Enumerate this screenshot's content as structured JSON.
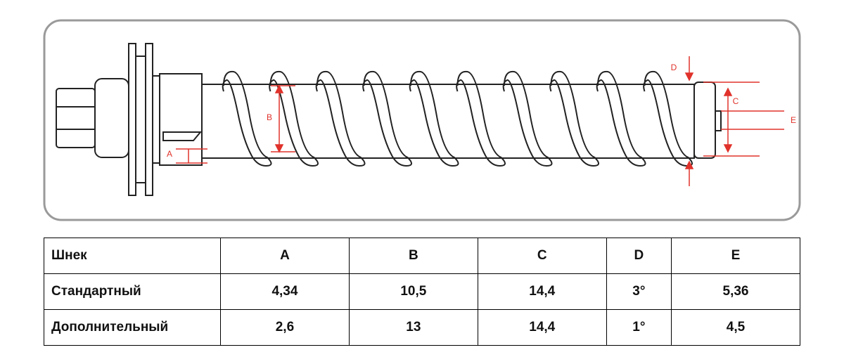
{
  "diagram": {
    "labels": {
      "a": "A",
      "b": "B",
      "c": "C",
      "d": "D",
      "e": "E"
    }
  },
  "table": {
    "header": [
      "Шнек",
      "A",
      "B",
      "C",
      "D",
      "E"
    ],
    "rows": [
      [
        "Стандартный",
        "4,34",
        "10,5",
        "14,4",
        "3°",
        "5,36"
      ],
      [
        "Дополнительный",
        "2,6",
        "13",
        "14,4",
        "1°",
        "4,5"
      ]
    ]
  }
}
